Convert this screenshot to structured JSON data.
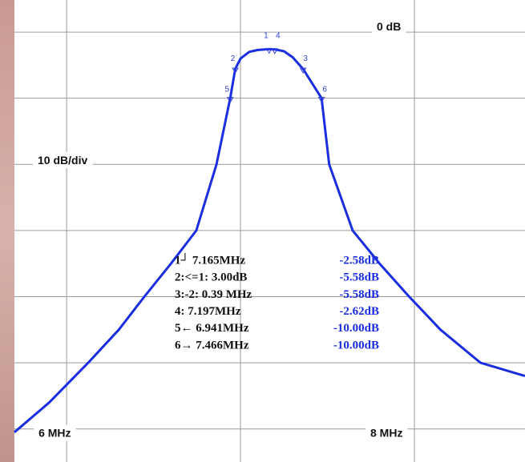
{
  "chart_data": {
    "type": "line",
    "annotation": "10 dB/div",
    "x": [
      5.7,
      5.9,
      6.124,
      6.3,
      6.447,
      6.6,
      6.746,
      6.862,
      6.941,
      6.97,
      7.0,
      7.05,
      7.1,
      7.165,
      7.197,
      7.25,
      7.3,
      7.36,
      7.466,
      7.51,
      7.645,
      7.8,
      7.97,
      8.15,
      8.38,
      8.636
    ],
    "values": [
      -60.5,
      -56,
      -50,
      -45,
      -40,
      -35,
      -30,
      -20,
      -10,
      -5.58,
      -4,
      -3.0,
      -2.7,
      -2.58,
      -2.62,
      -2.9,
      -3.8,
      -5.58,
      -10,
      -20,
      -30,
      -35,
      -40,
      -45,
      -50,
      -52
    ],
    "color": "#1a2ee0",
    "xlim": [
      5.7,
      8.636
    ],
    "ylim": [
      -65,
      4.85
    ],
    "xticks": [
      {
        "value": 6,
        "label": "6 MHz"
      },
      {
        "value": 8,
        "label": "8 MHz"
      }
    ],
    "yticks": [
      {
        "value": 0,
        "label": "0 dB"
      }
    ],
    "xgrid": [
      6,
      7,
      8
    ],
    "ygrid": [
      0,
      -10,
      -20,
      -30,
      -40,
      -50,
      -60
    ],
    "grid": true,
    "markers": [
      {
        "label": "1",
        "x": 7.165,
        "y": -2.58
      },
      {
        "label": "2",
        "x": 6.97,
        "y": -5.58
      },
      {
        "label": "3",
        "x": 7.36,
        "y": -5.58
      },
      {
        "label": "4",
        "x": 7.197,
        "y": -2.62
      },
      {
        "label": "5",
        "x": 6.941,
        "y": -10
      },
      {
        "label": "6",
        "x": 7.466,
        "y": -10
      }
    ],
    "marker_table": [
      [
        "1┘ 7.165MHz",
        "-2.58dB"
      ],
      [
        "2:<=1:  3.00dB",
        "-5.58dB"
      ],
      [
        "3:-2:   0.39 MHz",
        "-5.58dB"
      ],
      [
        "4: 7.197MHz",
        "-2.62dB"
      ],
      [
        "5← 6.941MHz",
        "-10.00dB"
      ],
      [
        "6→ 7.466MHz",
        "-10.00dB"
      ]
    ]
  }
}
